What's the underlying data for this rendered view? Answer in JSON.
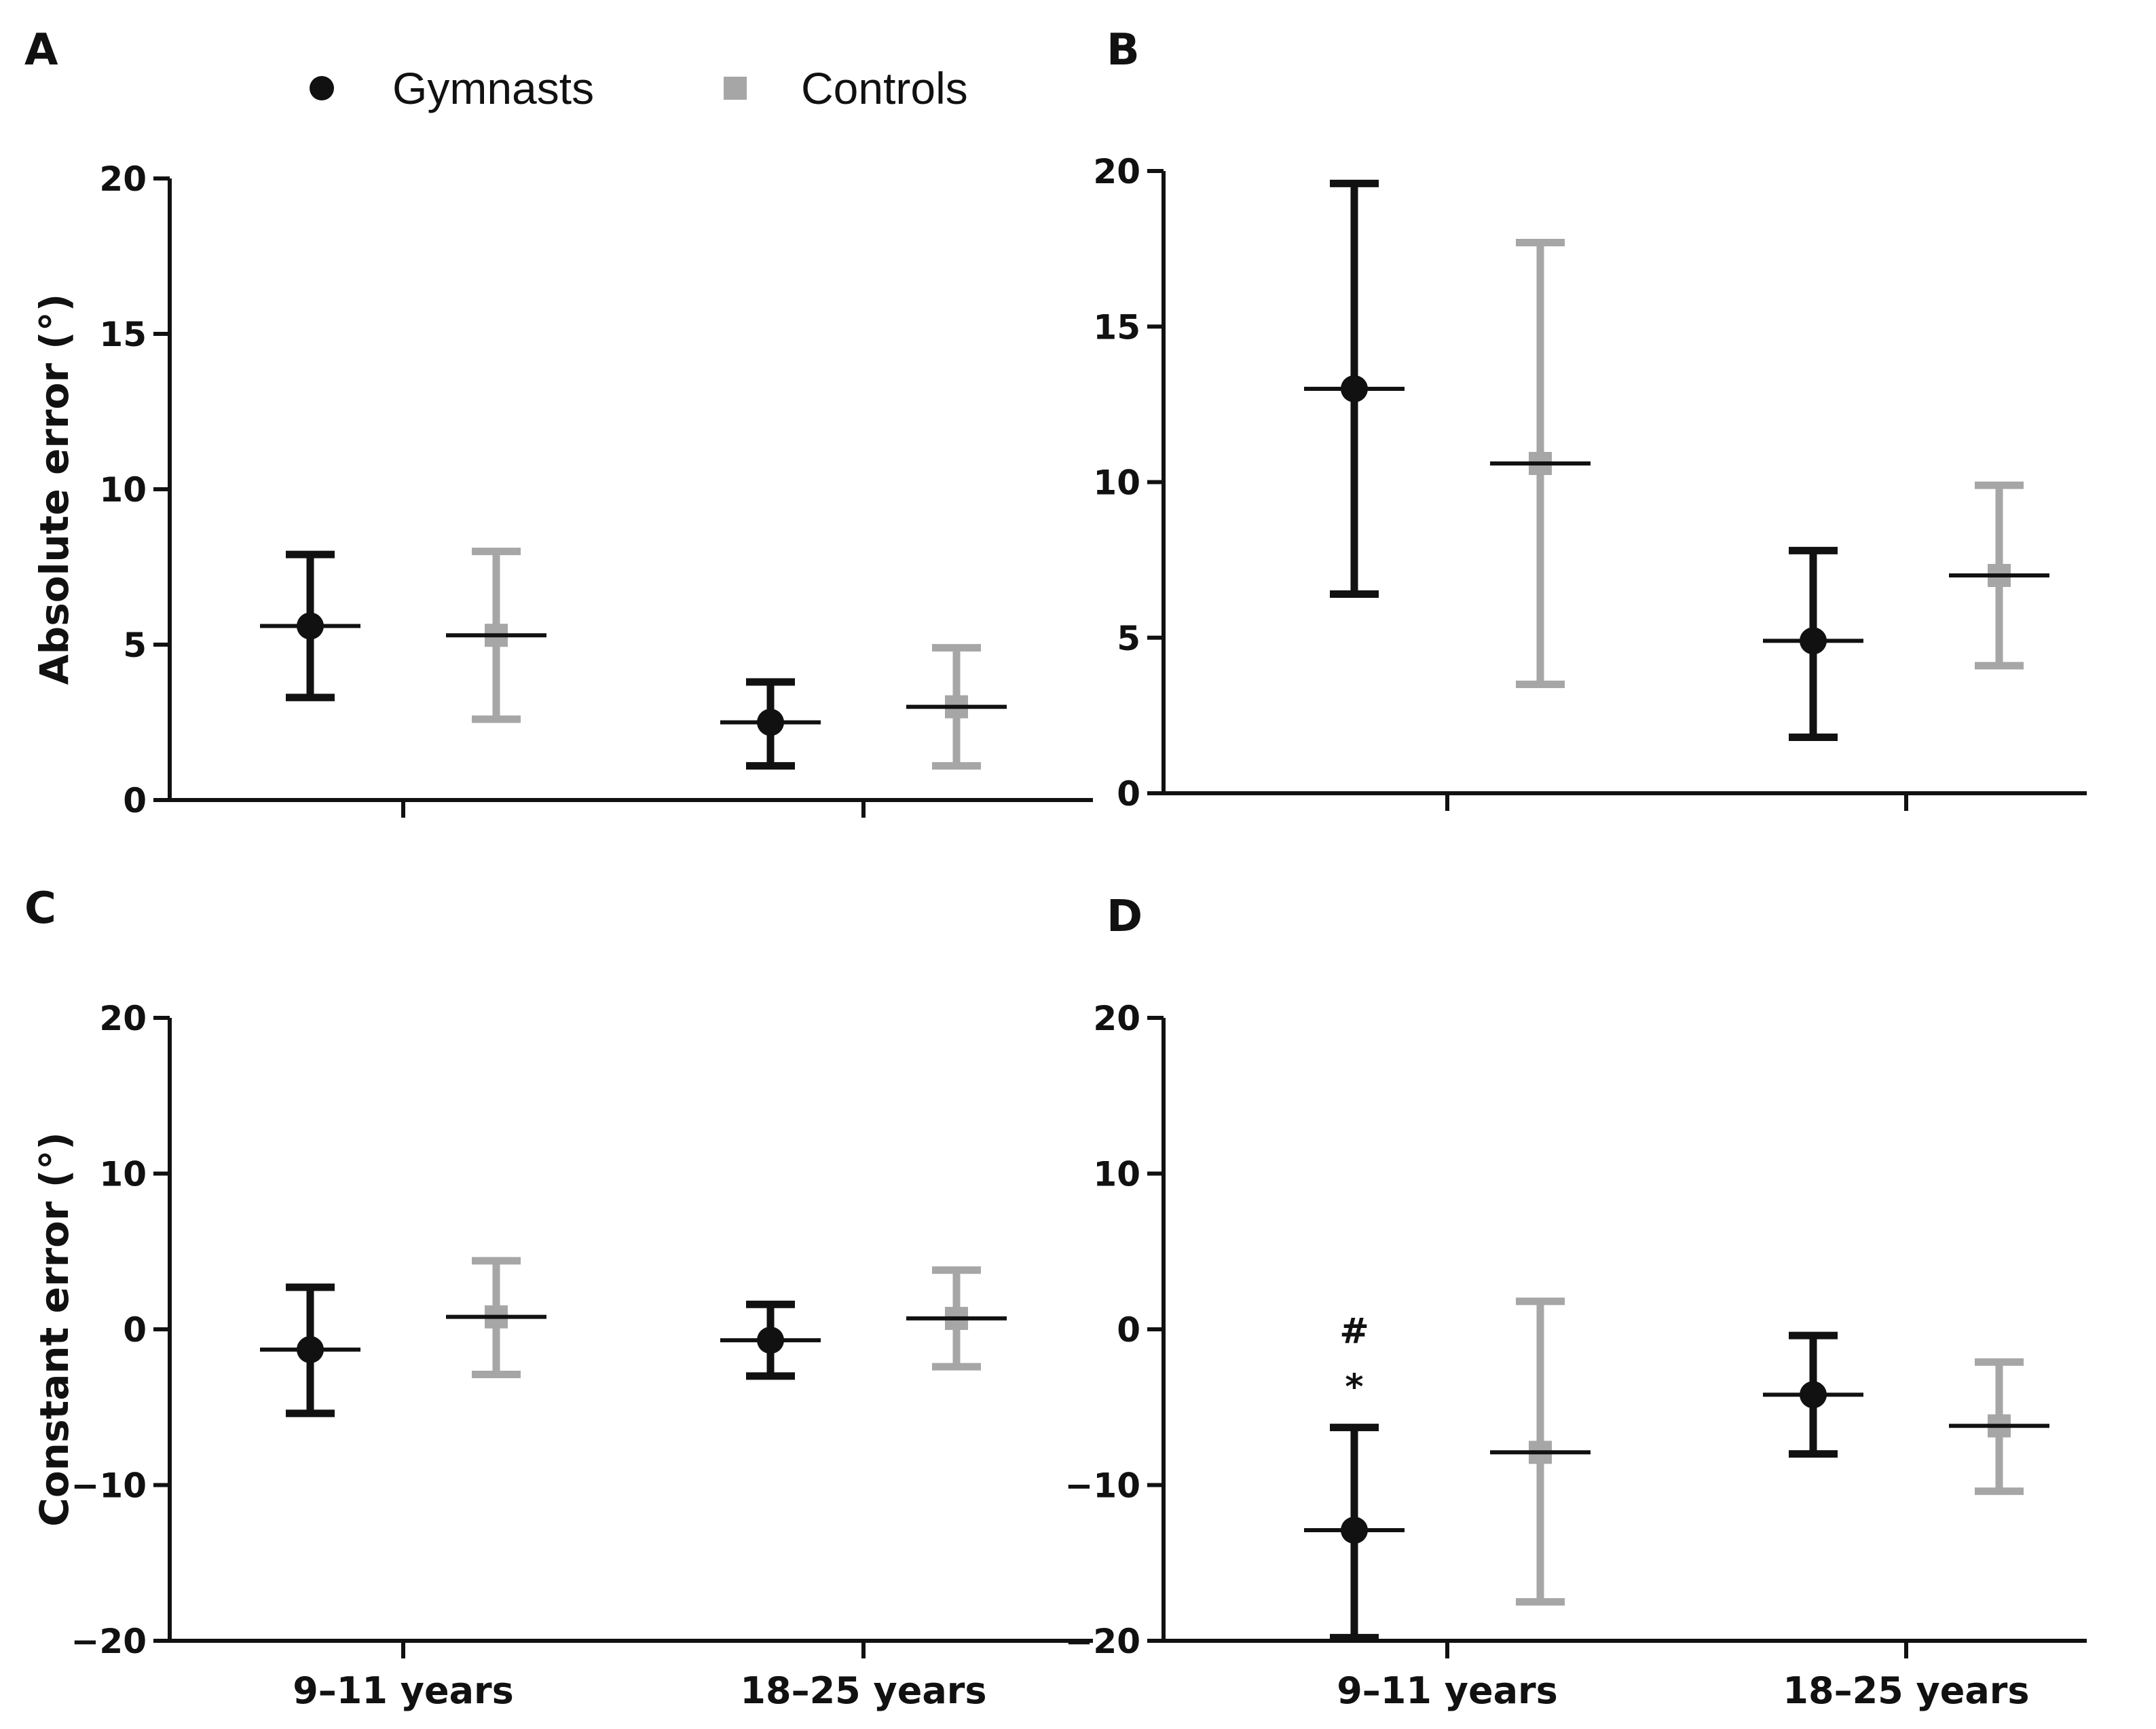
{
  "legend": {
    "items": [
      {
        "label": "Gymnasts",
        "color": "#111111",
        "marker": "circle"
      },
      {
        "label": "Controls",
        "color": "#a6a6a6",
        "marker": "square"
      }
    ]
  },
  "chart_data": [
    {
      "panel": "A",
      "type": "errorbar",
      "ylabel": "Absolute error (°)",
      "ylim": [
        0,
        20
      ],
      "yticks": [
        0,
        5,
        10,
        15,
        20
      ],
      "categories": [
        "9–11 years",
        "18–25 years"
      ],
      "show_category_labels": false,
      "series": [
        {
          "name": "Gymnasts",
          "means": [
            5.6,
            2.5
          ],
          "lower": [
            3.3,
            1.1
          ],
          "upper": [
            7.9,
            3.8
          ]
        },
        {
          "name": "Controls",
          "means": [
            5.3,
            3.0
          ],
          "lower": [
            2.6,
            1.1
          ],
          "upper": [
            8.0,
            4.9
          ]
        }
      ],
      "annotations": []
    },
    {
      "panel": "B",
      "type": "errorbar",
      "ylabel": "",
      "ylim": [
        0,
        20
      ],
      "yticks": [
        0,
        5,
        10,
        15,
        20
      ],
      "categories": [
        "9–11 years",
        "18–25 years"
      ],
      "show_category_labels": false,
      "series": [
        {
          "name": "Gymnasts",
          "means": [
            13.0,
            4.9
          ],
          "lower": [
            6.4,
            1.8
          ],
          "upper": [
            19.6,
            7.8
          ]
        },
        {
          "name": "Controls",
          "means": [
            10.6,
            7.0
          ],
          "lower": [
            3.5,
            4.1
          ],
          "upper": [
            17.7,
            9.9
          ]
        }
      ],
      "annotations": []
    },
    {
      "panel": "C",
      "type": "errorbar",
      "ylabel": "Constant error (°)",
      "ylim": [
        -20,
        20
      ],
      "yticks": [
        -20,
        -10,
        0,
        10,
        20
      ],
      "categories": [
        "9–11 years",
        "18–25 years"
      ],
      "show_category_labels": true,
      "series": [
        {
          "name": "Gymnasts",
          "means": [
            -1.3,
            -0.7
          ],
          "lower": [
            -5.4,
            -3.0
          ],
          "upper": [
            2.7,
            1.6
          ]
        },
        {
          "name": "Controls",
          "means": [
            0.8,
            0.7
          ],
          "lower": [
            -2.9,
            -2.4
          ],
          "upper": [
            4.4,
            3.8
          ]
        }
      ],
      "annotations": []
    },
    {
      "panel": "D",
      "type": "errorbar",
      "ylabel": "",
      "ylim": [
        -20,
        20
      ],
      "yticks": [
        -20,
        -10,
        0,
        10,
        20
      ],
      "categories": [
        "9–11 years",
        "18–25 years"
      ],
      "show_category_labels": true,
      "series": [
        {
          "name": "Gymnasts",
          "means": [
            -12.9,
            -4.2
          ],
          "lower": [
            -19.8,
            -8.0
          ],
          "upper": [
            -6.3,
            -0.4
          ]
        },
        {
          "name": "Controls",
          "means": [
            -7.9,
            -6.2
          ],
          "lower": [
            -17.5,
            -10.4
          ],
          "upper": [
            1.8,
            -2.1
          ]
        }
      ],
      "annotations": [
        {
          "text": "#",
          "category": 0,
          "series": 0,
          "y": 0
        },
        {
          "text": "*",
          "category": 0,
          "series": 0,
          "y": -3.6
        }
      ]
    }
  ]
}
